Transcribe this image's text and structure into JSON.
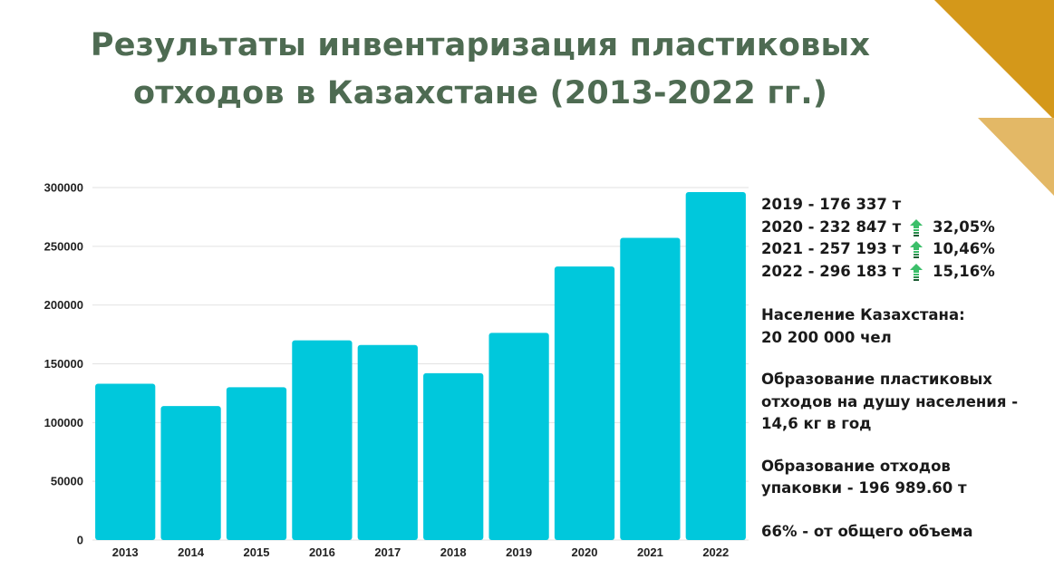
{
  "title": {
    "line1": "Результаты инвентаризация пластиковых",
    "line2": "отходов в Казахстане (2013-2022 гг.)"
  },
  "colors": {
    "title": "#4e6b52",
    "bar": "#00c8dc",
    "accent_dark": "#d4981a",
    "accent_light": "#e3b866",
    "arrow": "#3cbf6a"
  },
  "chart_data": {
    "type": "bar",
    "categories": [
      "2013",
      "2014",
      "2015",
      "2016",
      "2017",
      "2018",
      "2019",
      "2020",
      "2021",
      "2022"
    ],
    "values": [
      133000,
      114000,
      130000,
      170000,
      166000,
      142000,
      176337,
      232847,
      257193,
      296183
    ],
    "title": "",
    "xlabel": "",
    "ylabel": "",
    "ylim": [
      0,
      300000
    ],
    "yticks": [
      "0",
      "50000",
      "100000",
      "150000",
      "200000",
      "250000",
      "300000"
    ],
    "grid": true,
    "legend": "none"
  },
  "stats": [
    {
      "text": "2019 - 176 337 т",
      "pct": ""
    },
    {
      "text": "2020 - 232 847 т",
      "pct": "32,05%",
      "icon": "up-arrow-icon"
    },
    {
      "text": "2021 - 257 193 т",
      "pct": "10,46%",
      "icon": "up-arrow-icon"
    },
    {
      "text": "2022 - 296 183 т",
      "pct": "15,16%",
      "icon": "up-arrow-icon"
    }
  ],
  "population": {
    "line1": "Население Казахстана:",
    "line2": "20 200 000 чел"
  },
  "per_capita": {
    "line1": "Образование пластиковых",
    "line2": "отходов на душу населения -",
    "line3": "14,6 кг в год"
  },
  "packaging": {
    "line1": "Образование отходов",
    "line2": "упаковки - 196 989.60 т"
  },
  "share": "66% - от общего объема"
}
